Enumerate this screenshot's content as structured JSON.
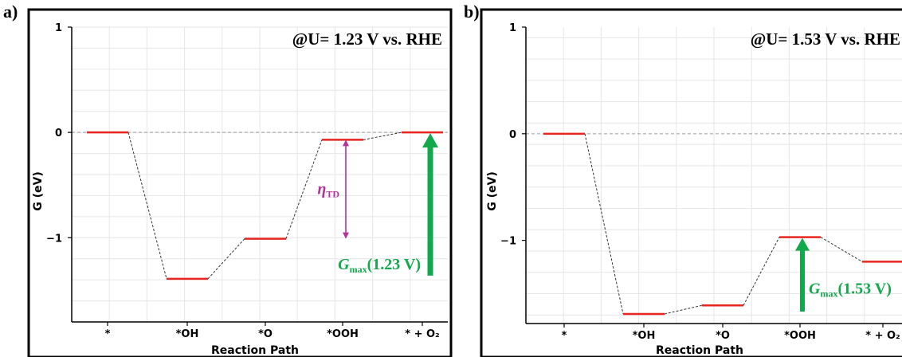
{
  "chart_data": [
    {
      "panel_label": "a)",
      "type": "line",
      "potential_label": "@U= 1.23 V vs. RHE",
      "xlabel": "Reaction Path",
      "ylabel": "G (eV)",
      "ylim": [
        -1.8,
        1.0
      ],
      "yticks": [
        1,
        0,
        -1
      ],
      "ytick_labels": [
        "1",
        "0",
        "−1"
      ],
      "categories": [
        "*",
        "*OH",
        "*O",
        "*OOH",
        "* + O₂"
      ],
      "values": [
        0.0,
        -1.39,
        -1.01,
        -0.07,
        0.0
      ],
      "grid": true,
      "reference_line": 0,
      "level_color": "#e8251f",
      "connector_color": "#333333",
      "annotations": [
        {
          "id": "eta",
          "text_main": "η",
          "text_sub": "TD",
          "from": -0.07,
          "to": -1.01,
          "at_category": "*OOH",
          "color": "#b4339a"
        },
        {
          "id": "gmax",
          "text_main": "G",
          "text_sub": "max",
          "text_suffix": "(1.23 V)",
          "from": -1.39,
          "to": 0.0,
          "at_category": "* + O₂",
          "color": "#12a84c"
        }
      ]
    },
    {
      "panel_label": "b)",
      "type": "line",
      "potential_label": "@U= 1.53 V vs. RHE",
      "xlabel": "Reaction Path",
      "ylabel": "G (eV)",
      "ylim": [
        -1.78,
        1.0
      ],
      "yticks": [
        1,
        0,
        -1
      ],
      "ytick_labels": [
        "1",
        "0",
        "−1"
      ],
      "categories": [
        "*",
        "*OH",
        "*O",
        "*OOH",
        "* + O₂"
      ],
      "values": [
        0.0,
        -1.69,
        -1.61,
        -0.97,
        -1.2
      ],
      "grid": true,
      "reference_line": 0,
      "level_color": "#e8251f",
      "connector_color": "#333333",
      "annotations": [
        {
          "id": "gmax",
          "text_main": "G",
          "text_sub": "max",
          "text_suffix": "(1.53 V)",
          "from": -1.69,
          "to": -0.97,
          "at_category": "*OOH",
          "color": "#12a84c"
        }
      ]
    }
  ]
}
